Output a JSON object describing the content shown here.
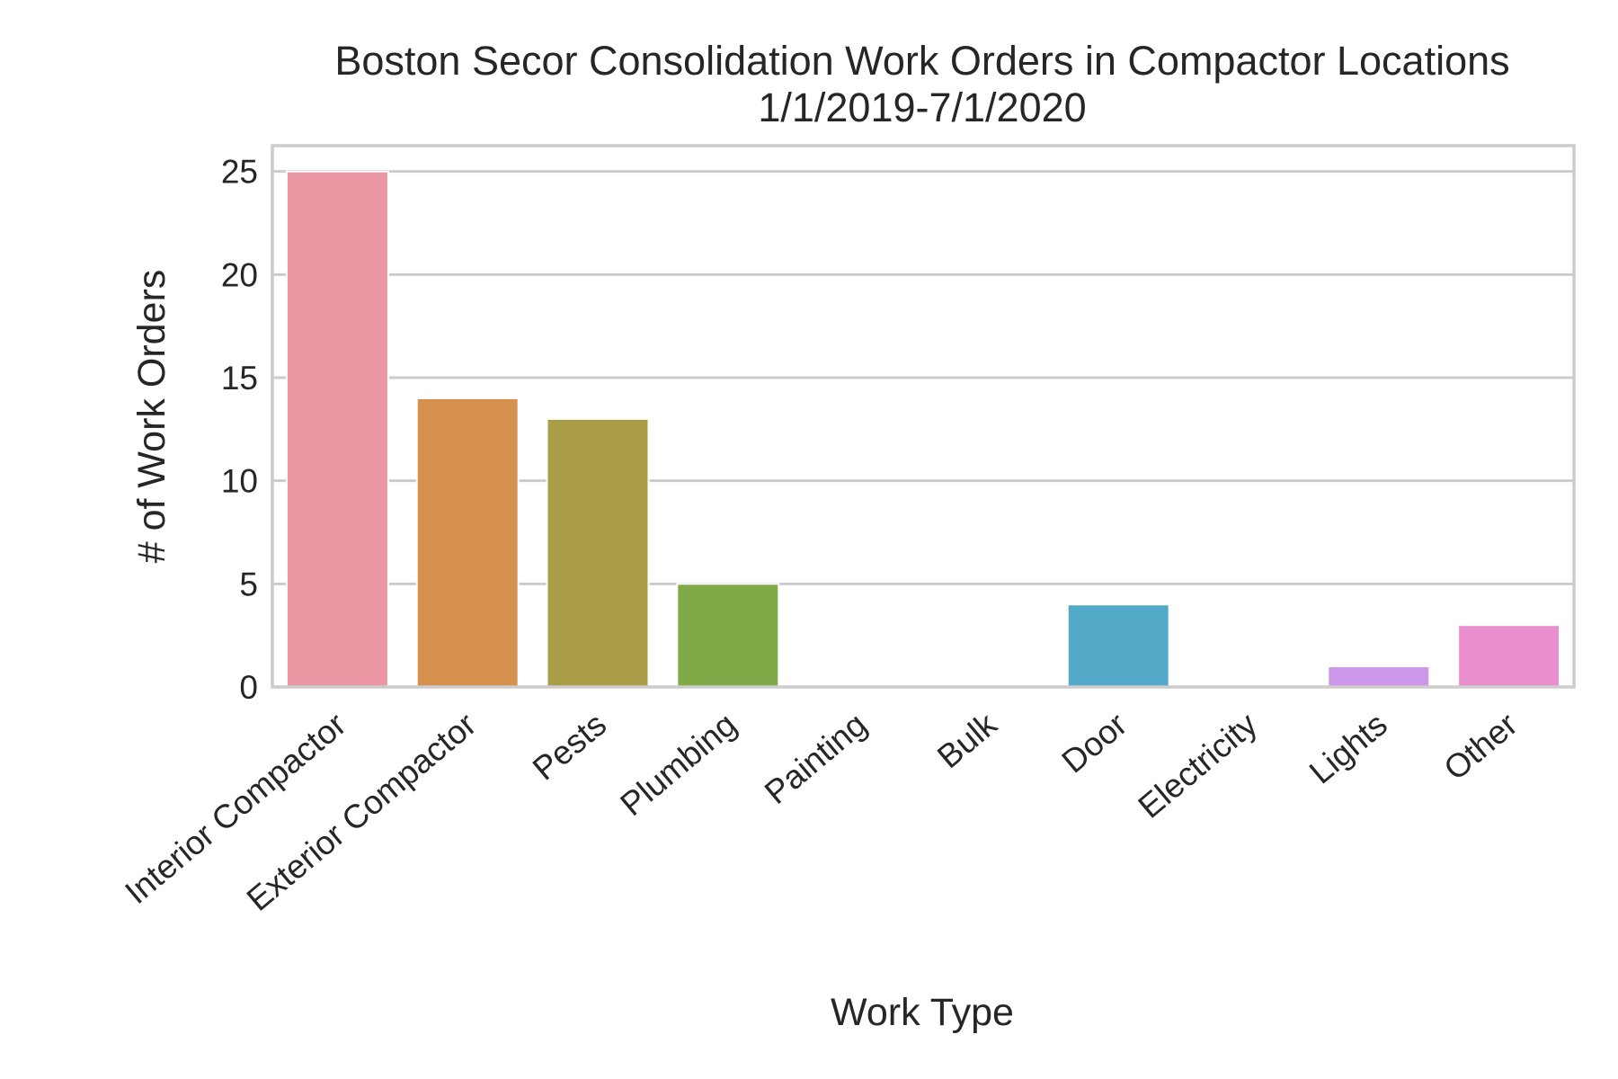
{
  "chart_data": {
    "type": "bar",
    "title": "Boston Secor Consolidation Work Orders in Compactor Locations",
    "subtitle": "1/1/2019-7/1/2020",
    "xlabel": "Work Type",
    "ylabel": "# of Work Orders",
    "categories": [
      "Interior Compactor",
      "Exterior Compactor",
      "Pests",
      "Plumbing",
      "Painting",
      "Bulk",
      "Door",
      "Electricity",
      "Lights",
      "Other"
    ],
    "values": [
      25,
      14,
      13,
      5,
      0,
      0,
      4,
      0,
      1,
      3
    ],
    "colors": [
      "#ea96a3",
      "#d7914f",
      "#a99d48",
      "#7faa47",
      "#4fae7b",
      "#51aa9f",
      "#53a9c8",
      "#8ea6e8",
      "#cc97e9",
      "#e98fce"
    ],
    "ylim": [
      0,
      26.25
    ],
    "yticks": [
      0,
      5,
      10,
      15,
      20,
      25
    ],
    "grid": true,
    "legend": "none"
  }
}
